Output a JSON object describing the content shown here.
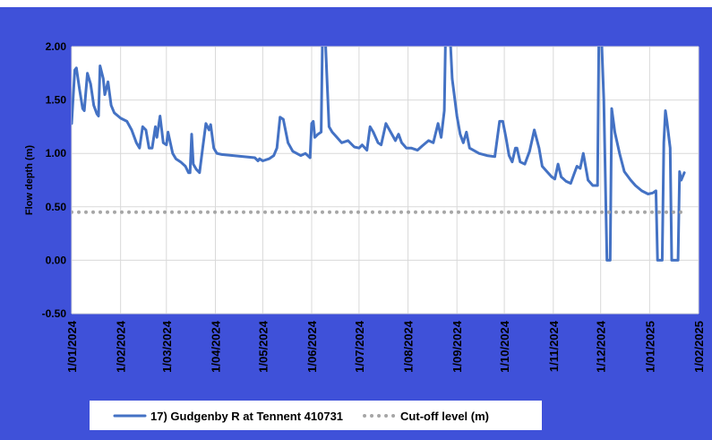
{
  "chart_data": {
    "type": "line",
    "y_label": "Flow depth (m)",
    "ylim": [
      -0.5,
      2.0
    ],
    "yticks": [
      {
        "value": -0.5,
        "label": "-0.50"
      },
      {
        "value": 0,
        "label": "0.00"
      },
      {
        "value": 0.5,
        "label": "0.50"
      },
      {
        "value": 1,
        "label": "1.00"
      },
      {
        "value": 1.5,
        "label": "1.50"
      },
      {
        "value": 2,
        "label": "2.00"
      }
    ],
    "xlim": [
      "2024-01-01",
      "2025-02-01"
    ],
    "xticks": [
      {
        "value": "2024-01-01",
        "label": "1/01/2024"
      },
      {
        "value": "2024-02-01",
        "label": "1/02/2024"
      },
      {
        "value": "2024-03-01",
        "label": "1/03/2024"
      },
      {
        "value": "2024-04-01",
        "label": "1/04/2024"
      },
      {
        "value": "2024-05-01",
        "label": "1/05/2024"
      },
      {
        "value": "2024-06-01",
        "label": "1/06/2024"
      },
      {
        "value": "2024-07-01",
        "label": "1/07/2024"
      },
      {
        "value": "2024-08-01",
        "label": "1/08/2024"
      },
      {
        "value": "2024-09-01",
        "label": "1/09/2024"
      },
      {
        "value": "2024-10-01",
        "label": "1/10/2024"
      },
      {
        "value": "2024-11-01",
        "label": "1/11/2024"
      },
      {
        "value": "2024-12-01",
        "label": "1/12/2024"
      },
      {
        "value": "2025-01-01",
        "label": "1/01/2025"
      },
      {
        "value": "2025-02-01",
        "label": "1/02/2025"
      }
    ],
    "grid": true,
    "legend": "bottom",
    "series": [
      {
        "name": "17) Gudgenby R at Tennent 410731",
        "color": "#4472c4",
        "style": "solid",
        "x": [
          "2024-01-01",
          "2024-01-03",
          "2024-01-04",
          "2024-01-06",
          "2024-01-08",
          "2024-01-09",
          "2024-01-11",
          "2024-01-13",
          "2024-01-15",
          "2024-01-17",
          "2024-01-18",
          "2024-01-19",
          "2024-01-21",
          "2024-01-22",
          "2024-01-24",
          "2024-01-26",
          "2024-01-28",
          "2024-02-01",
          "2024-02-05",
          "2024-02-08",
          "2024-02-11",
          "2024-02-13",
          "2024-02-15",
          "2024-02-17",
          "2024-02-19",
          "2024-02-21",
          "2024-02-23",
          "2024-02-24",
          "2024-02-26",
          "2024-02-28",
          "2024-03-01",
          "2024-03-02",
          "2024-03-05",
          "2024-03-07",
          "2024-03-10",
          "2024-03-13",
          "2024-03-15",
          "2024-03-16",
          "2024-03-17",
          "2024-03-18",
          "2024-03-20",
          "2024-03-22",
          "2024-03-24",
          "2024-03-26",
          "2024-03-28",
          "2024-03-29",
          "2024-03-31",
          "2024-04-02",
          "2024-04-05",
          "2024-04-26",
          "2024-04-28",
          "2024-04-29",
          "2024-05-01",
          "2024-05-05",
          "2024-05-08",
          "2024-05-10",
          "2024-05-12",
          "2024-05-14",
          "2024-05-17",
          "2024-05-20",
          "2024-05-25",
          "2024-05-28",
          "2024-05-31",
          "2024-06-01",
          "2024-06-02",
          "2024-06-03",
          "2024-06-05",
          "2024-06-07",
          "2024-06-08",
          "2024-06-09",
          "2024-06-11",
          "2024-06-12",
          "2024-06-14",
          "2024-06-17",
          "2024-06-20",
          "2024-06-24",
          "2024-06-28",
          "2024-07-01",
          "2024-07-03",
          "2024-07-06",
          "2024-07-08",
          "2024-07-10",
          "2024-07-13",
          "2024-07-15",
          "2024-07-18",
          "2024-07-21",
          "2024-07-24",
          "2024-07-26",
          "2024-07-28",
          "2024-07-31",
          "2024-08-03",
          "2024-08-07",
          "2024-08-10",
          "2024-08-14",
          "2024-08-17",
          "2024-08-20",
          "2024-08-22",
          "2024-08-24",
          "2024-08-25",
          "2024-08-27",
          "2024-08-29",
          "2024-09-01",
          "2024-09-03",
          "2024-09-05",
          "2024-09-07",
          "2024-09-09",
          "2024-09-15",
          "2024-09-20",
          "2024-09-25",
          "2024-09-28",
          "2024-09-30",
          "2024-10-02",
          "2024-10-04",
          "2024-10-06",
          "2024-10-08",
          "2024-10-09",
          "2024-10-11",
          "2024-10-14",
          "2024-10-17",
          "2024-10-20",
          "2024-10-23",
          "2024-10-25",
          "2024-10-28",
          "2024-10-31",
          "2024-11-02",
          "2024-11-04",
          "2024-11-06",
          "2024-11-09",
          "2024-11-12",
          "2024-11-14",
          "2024-11-16",
          "2024-11-18",
          "2024-11-20",
          "2024-11-23",
          "2024-11-26",
          "2024-11-29",
          "2024-11-30",
          "2024-12-01",
          "2024-12-03",
          "2024-12-05",
          "2024-12-07",
          "2024-12-08",
          "2024-12-10",
          "2024-12-13",
          "2024-12-16",
          "2024-12-20",
          "2024-12-23",
          "2024-12-27",
          "2024-12-31",
          "2025-01-03",
          "2025-01-05",
          "2025-01-06",
          "2025-01-09",
          "2025-01-10",
          "2025-01-11",
          "2025-01-12",
          "2025-01-14",
          "2025-01-15",
          "2025-01-19",
          "2025-01-20",
          "2025-01-21",
          "2025-01-23"
        ],
        "values": [
          1.28,
          1.78,
          1.8,
          1.6,
          1.42,
          1.4,
          1.75,
          1.65,
          1.45,
          1.37,
          1.35,
          1.82,
          1.7,
          1.55,
          1.67,
          1.45,
          1.38,
          1.33,
          1.3,
          1.22,
          1.1,
          1.05,
          1.25,
          1.22,
          1.05,
          1.05,
          1.25,
          1.15,
          1.35,
          1.1,
          1.08,
          1.2,
          1.0,
          0.95,
          0.92,
          0.88,
          0.82,
          0.82,
          1.18,
          0.9,
          0.85,
          0.82,
          1.05,
          1.28,
          1.22,
          1.27,
          1.05,
          1.0,
          0.99,
          0.96,
          0.93,
          0.95,
          0.93,
          0.95,
          0.98,
          1.05,
          1.34,
          1.32,
          1.1,
          1.02,
          0.98,
          1.0,
          0.96,
          1.28,
          1.3,
          1.15,
          1.18,
          1.2,
          2.3,
          2.3,
          1.6,
          1.25,
          1.2,
          1.15,
          1.1,
          1.12,
          1.06,
          1.05,
          1.08,
          1.03,
          1.25,
          1.2,
          1.1,
          1.08,
          1.28,
          1.2,
          1.12,
          1.18,
          1.1,
          1.05,
          1.05,
          1.03,
          1.07,
          1.12,
          1.1,
          1.28,
          1.15,
          1.4,
          2.3,
          2.3,
          1.7,
          1.35,
          1.18,
          1.1,
          1.2,
          1.05,
          1.0,
          0.98,
          0.97,
          1.3,
          1.3,
          1.15,
          0.98,
          0.92,
          1.05,
          1.05,
          0.92,
          0.9,
          1.02,
          1.22,
          1.05,
          0.88,
          0.83,
          0.78,
          0.76,
          0.9,
          0.78,
          0.74,
          0.72,
          0.8,
          0.88,
          0.86,
          1.0,
          0.75,
          0.7,
          0.7,
          2.3,
          2.3,
          1.5,
          0.0,
          0.0,
          1.42,
          1.2,
          1.0,
          0.83,
          0.75,
          0.7,
          0.65,
          0.62,
          0.63,
          0.65,
          0.0,
          0.0,
          1.1,
          1.4,
          1.3,
          1.05,
          0.0,
          0.0,
          0.83,
          0.75,
          0.82
        ]
      },
      {
        "name": "Cut-off level (m)",
        "color": "#a6a6a6",
        "style": "dotted",
        "x": [
          "2024-01-01",
          "2025-01-23"
        ],
        "values": [
          0.45,
          0.45
        ]
      }
    ]
  }
}
